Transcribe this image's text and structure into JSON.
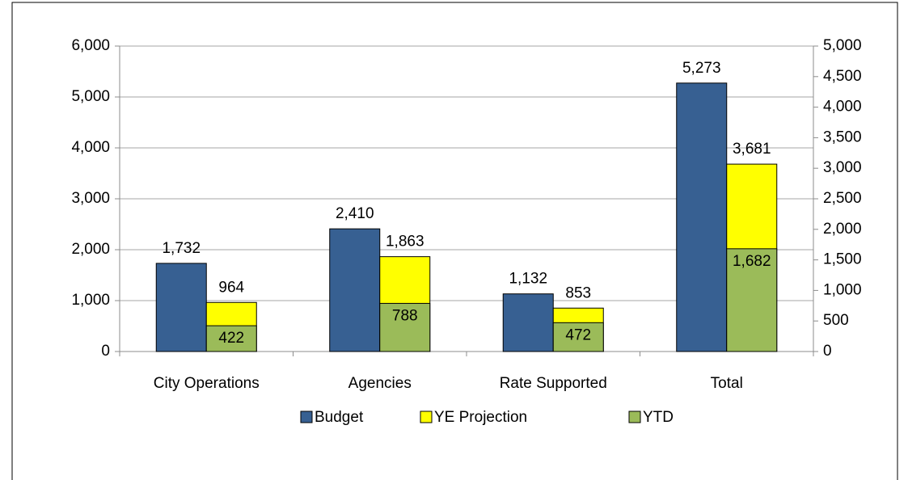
{
  "chart_data": {
    "type": "bar",
    "categories": [
      "City Operations",
      "Agencies",
      "Rate Supported",
      "Total"
    ],
    "series": [
      {
        "name": "Budget",
        "color": "#376092",
        "values": [
          1732,
          2410,
          1132,
          5273
        ],
        "value_labels": [
          "1,732",
          "2,410",
          "1,132",
          "5,273"
        ]
      },
      {
        "name": "YE Projection",
        "color": "#ffff00",
        "values": [
          964,
          1863,
          853,
          3681
        ],
        "value_labels": [
          "964",
          "1,863",
          "853",
          "3,681"
        ]
      },
      {
        "name": "YTD",
        "color": "#9bbb59",
        "axis": "y2",
        "values": [
          422,
          788,
          472,
          1682
        ],
        "value_labels": [
          "422",
          "788",
          "472",
          "1,682"
        ]
      }
    ],
    "ylim": [
      0,
      6000
    ],
    "yticks": [
      0,
      {
        "value": 1000,
        "label": "1,000"
      },
      {
        "value": 2000,
        "label": "2,000"
      },
      {
        "value": 3000,
        "label": "3,000"
      },
      {
        "value": 4000,
        "label": "4,000"
      },
      {
        "value": 5000,
        "label": "5,000"
      },
      {
        "value": 6000,
        "label": "6,000"
      }
    ],
    "y2lim": [
      0,
      5000
    ],
    "y2ticks": [
      0,
      500,
      {
        "value": 1000,
        "label": "1,000"
      },
      {
        "value": 1500,
        "label": "1,500"
      },
      {
        "value": 2000,
        "label": "2,000"
      },
      {
        "value": 2500,
        "label": "2,500"
      },
      {
        "value": 3000,
        "label": "3,000"
      },
      {
        "value": 3500,
        "label": "3,500"
      },
      {
        "value": 4000,
        "label": "4,000"
      },
      {
        "value": 4500,
        "label": "4,500"
      },
      {
        "value": 5000,
        "label": "5,000"
      }
    ],
    "grid": true,
    "legend": "bottom"
  }
}
